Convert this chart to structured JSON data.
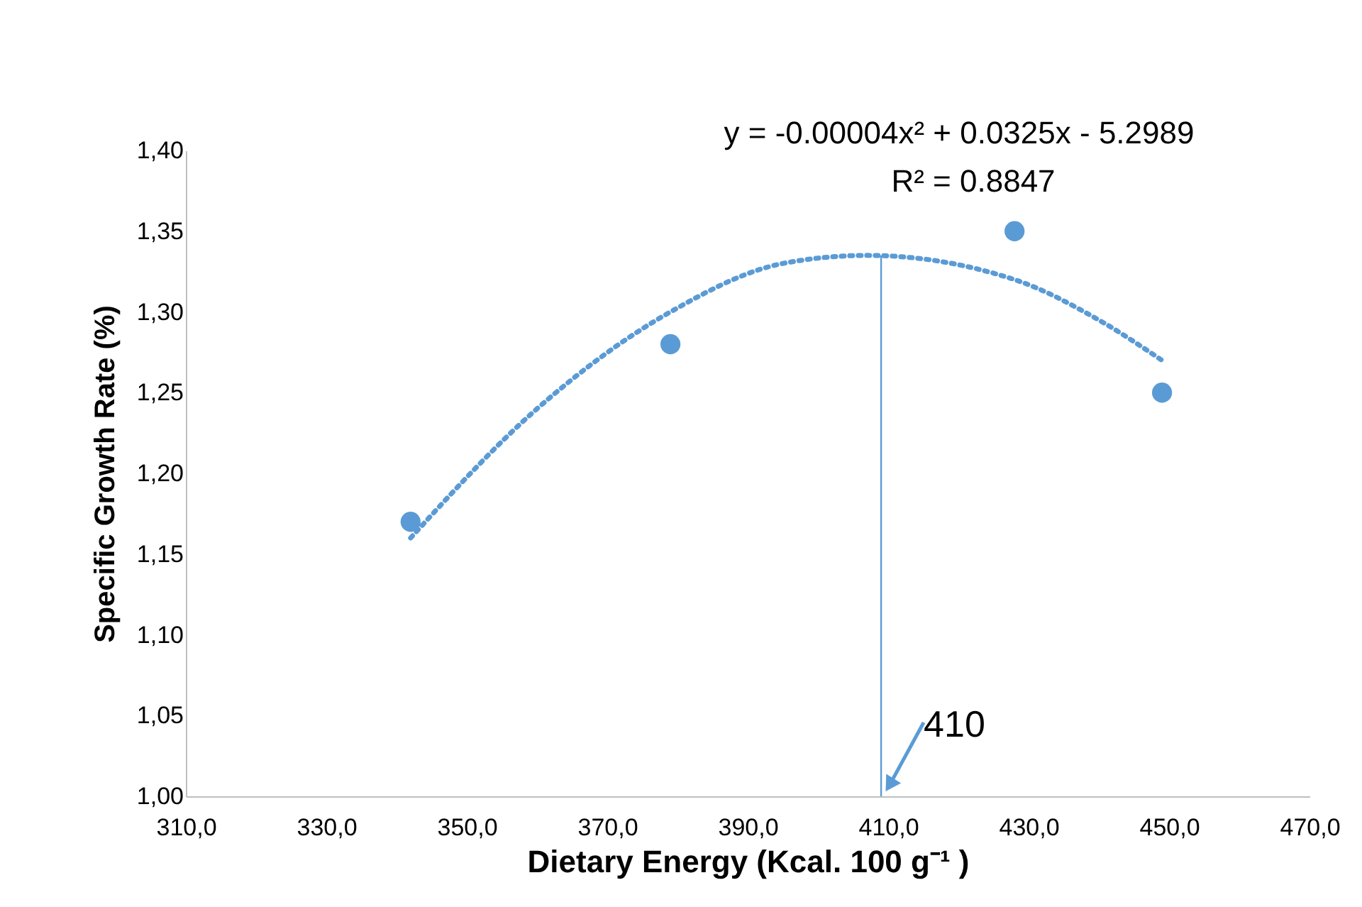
{
  "chart_data": {
    "type": "scatter",
    "xlabel": "Dietary Energy (Kcal. 100 g⁻¹ )",
    "ylabel": "Specific Growth Rate (%)",
    "xlim": [
      310,
      470
    ],
    "xticks": [
      {
        "value": 310,
        "label": "310,0"
      },
      {
        "value": 330,
        "label": "330,0"
      },
      {
        "value": 350,
        "label": "350,0"
      },
      {
        "value": 370,
        "label": "370,0"
      },
      {
        "value": 390,
        "label": "390,0"
      },
      {
        "value": 410,
        "label": "410,0"
      },
      {
        "value": 430,
        "label": "430,0"
      },
      {
        "value": 450,
        "label": "450,0"
      },
      {
        "value": 470,
        "label": "470,0"
      }
    ],
    "ylim": [
      1.0,
      1.4
    ],
    "yticks": [
      {
        "value": 1.0,
        "label": "1,00"
      },
      {
        "value": 1.05,
        "label": "1,05"
      },
      {
        "value": 1.1,
        "label": "1,10"
      },
      {
        "value": 1.15,
        "label": "1,15"
      },
      {
        "value": 1.2,
        "label": "1,20"
      },
      {
        "value": 1.25,
        "label": "1,25"
      },
      {
        "value": 1.3,
        "label": "1,30"
      },
      {
        "value": 1.35,
        "label": "1,35"
      },
      {
        "value": 1.4,
        "label": "1,40"
      }
    ],
    "series": [
      {
        "color": "#5b9bd5",
        "marker": "circle",
        "x": [
          342,
          379,
          428,
          449
        ],
        "values": [
          1.17,
          1.28,
          1.35,
          1.25
        ]
      },
      {
        "type": "line",
        "color": "#5b9bd5",
        "line_style": "dotted",
        "marker": "none",
        "x": [
          342,
          360,
          379,
          395,
          407,
          428,
          440,
          449
        ],
        "values": [
          1.16,
          1.24,
          1.3,
          1.33,
          1.335,
          1.32,
          1.295,
          1.27
        ]
      }
    ],
    "ref_lines": [
      {
        "axis": "x",
        "value": 409,
        "color": "#5b9bd5",
        "line_style": "solid"
      }
    ],
    "annotations": [
      "y = -0.00004x² + 0.0325x - 5.2989",
      "R² = 0.8847",
      {
        "text": "410",
        "x": 409,
        "y": 1.0
      }
    ]
  }
}
